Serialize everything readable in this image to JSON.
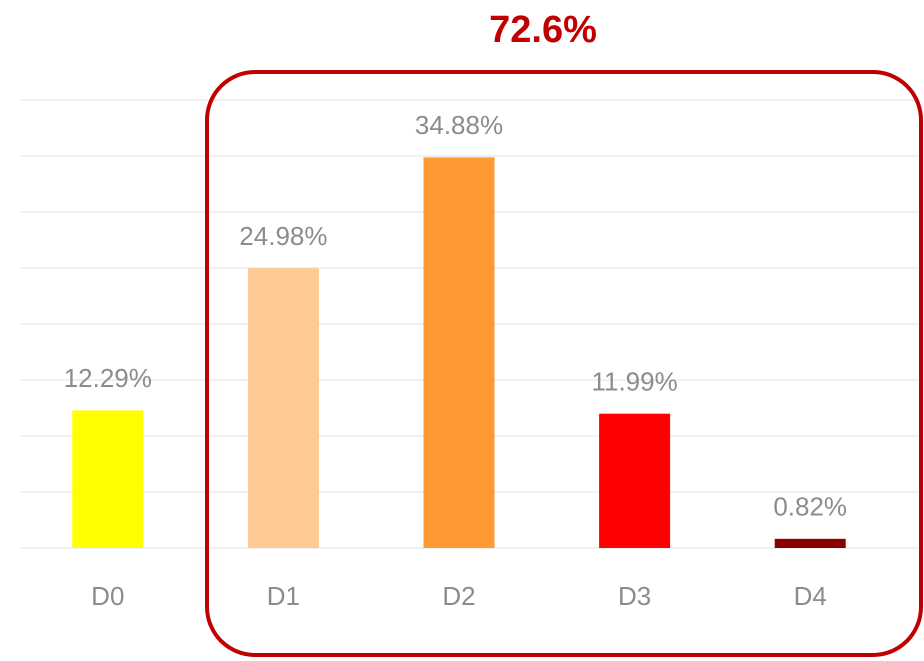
{
  "chart_data": {
    "type": "bar",
    "annotation": "72.6%",
    "categories": [
      "D0",
      "D1",
      "D2",
      "D3",
      "D4"
    ],
    "values": [
      12.29,
      24.98,
      34.88,
      11.99,
      0.82
    ],
    "value_labels": [
      "12.29%",
      "24.98%",
      "34.88%",
      "11.99%",
      "0.82%"
    ],
    "colors": [
      "#ffff00",
      "#ffc993",
      "#ff9933",
      "#ff0000",
      "#8b0000"
    ],
    "ylim": [
      0,
      40
    ],
    "yticks": [
      0,
      5,
      10,
      15,
      20,
      25,
      30,
      35,
      40
    ],
    "grid": true
  }
}
